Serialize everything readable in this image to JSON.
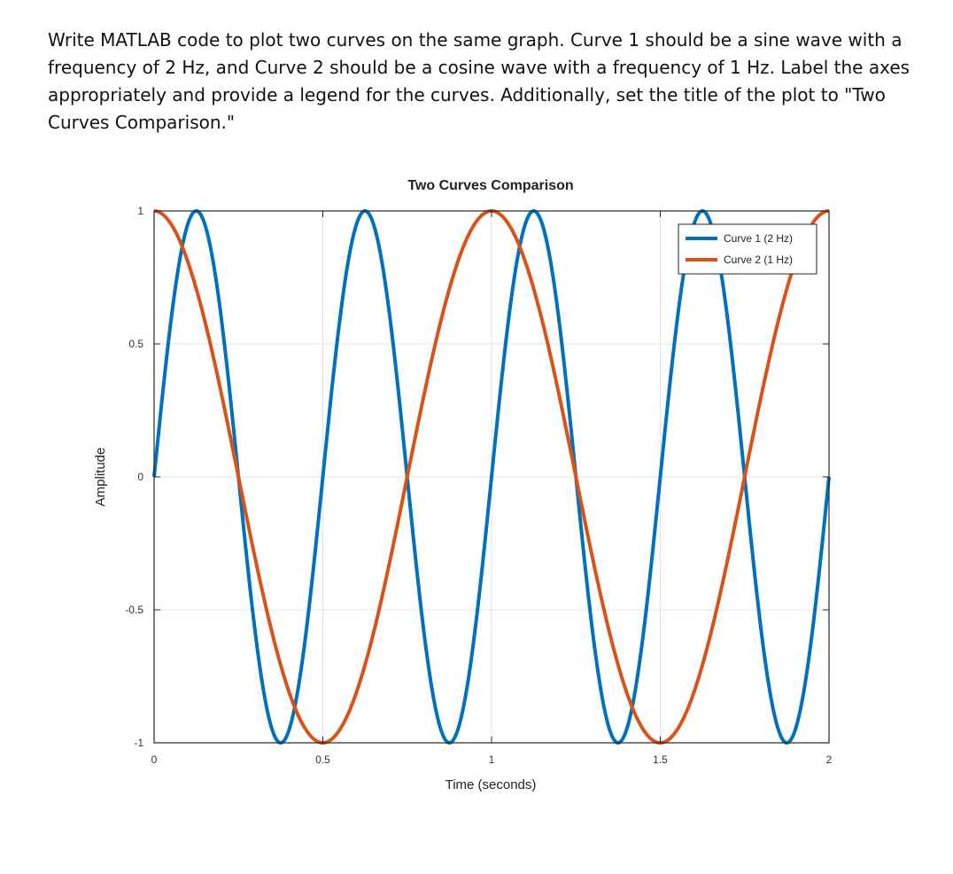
{
  "question": {
    "text": "Write MATLAB code to plot two curves on the same graph. Curve 1 should be a sine wave with a frequency of 2 Hz, and Curve 2 should be a cosine wave with a frequency of 1 Hz. Label the axes appropriately and provide a legend for the curves. Additionally, set the title of the plot to \"Two Curves Comparison.\""
  },
  "chart_data": {
    "type": "line",
    "title": "Two Curves Comparison",
    "xlabel": "Time (seconds)",
    "ylabel": "Amplitude",
    "xlim": [
      0,
      2
    ],
    "ylim": [
      -1,
      1
    ],
    "xticks": [
      0,
      0.5,
      1,
      1.5,
      2
    ],
    "xtick_labels": [
      "0",
      "0.5",
      "1",
      "1.5",
      "2"
    ],
    "yticks": [
      -1,
      -0.5,
      0,
      0.5,
      1
    ],
    "ytick_labels": [
      "-1",
      "-0.5",
      "0",
      "0.5",
      "1"
    ],
    "grid": true,
    "legend_position": "top-right",
    "series": [
      {
        "name": "Curve 1 (2 Hz)",
        "function": "sin(2*pi*2*t)",
        "frequency_hz": 2,
        "color": "#0072BD",
        "key_points": [
          [
            0,
            0
          ],
          [
            0.125,
            1
          ],
          [
            0.25,
            0
          ],
          [
            0.375,
            -1
          ],
          [
            0.5,
            0
          ],
          [
            0.625,
            1
          ],
          [
            0.75,
            0
          ],
          [
            0.875,
            -1
          ],
          [
            1,
            0
          ],
          [
            1.125,
            1
          ],
          [
            1.25,
            0
          ],
          [
            1.375,
            -1
          ],
          [
            1.5,
            0
          ],
          [
            1.625,
            1
          ],
          [
            1.75,
            0
          ],
          [
            1.875,
            -1
          ],
          [
            2,
            0
          ]
        ]
      },
      {
        "name": "Curve 2 (1 Hz)",
        "function": "cos(2*pi*1*t)",
        "frequency_hz": 1,
        "color": "#D95319",
        "key_points": [
          [
            0,
            1
          ],
          [
            0.25,
            0
          ],
          [
            0.5,
            -1
          ],
          [
            0.75,
            0
          ],
          [
            1,
            1
          ],
          [
            1.25,
            0
          ],
          [
            1.5,
            -1
          ],
          [
            1.75,
            0
          ],
          [
            2,
            1
          ]
        ]
      }
    ]
  }
}
